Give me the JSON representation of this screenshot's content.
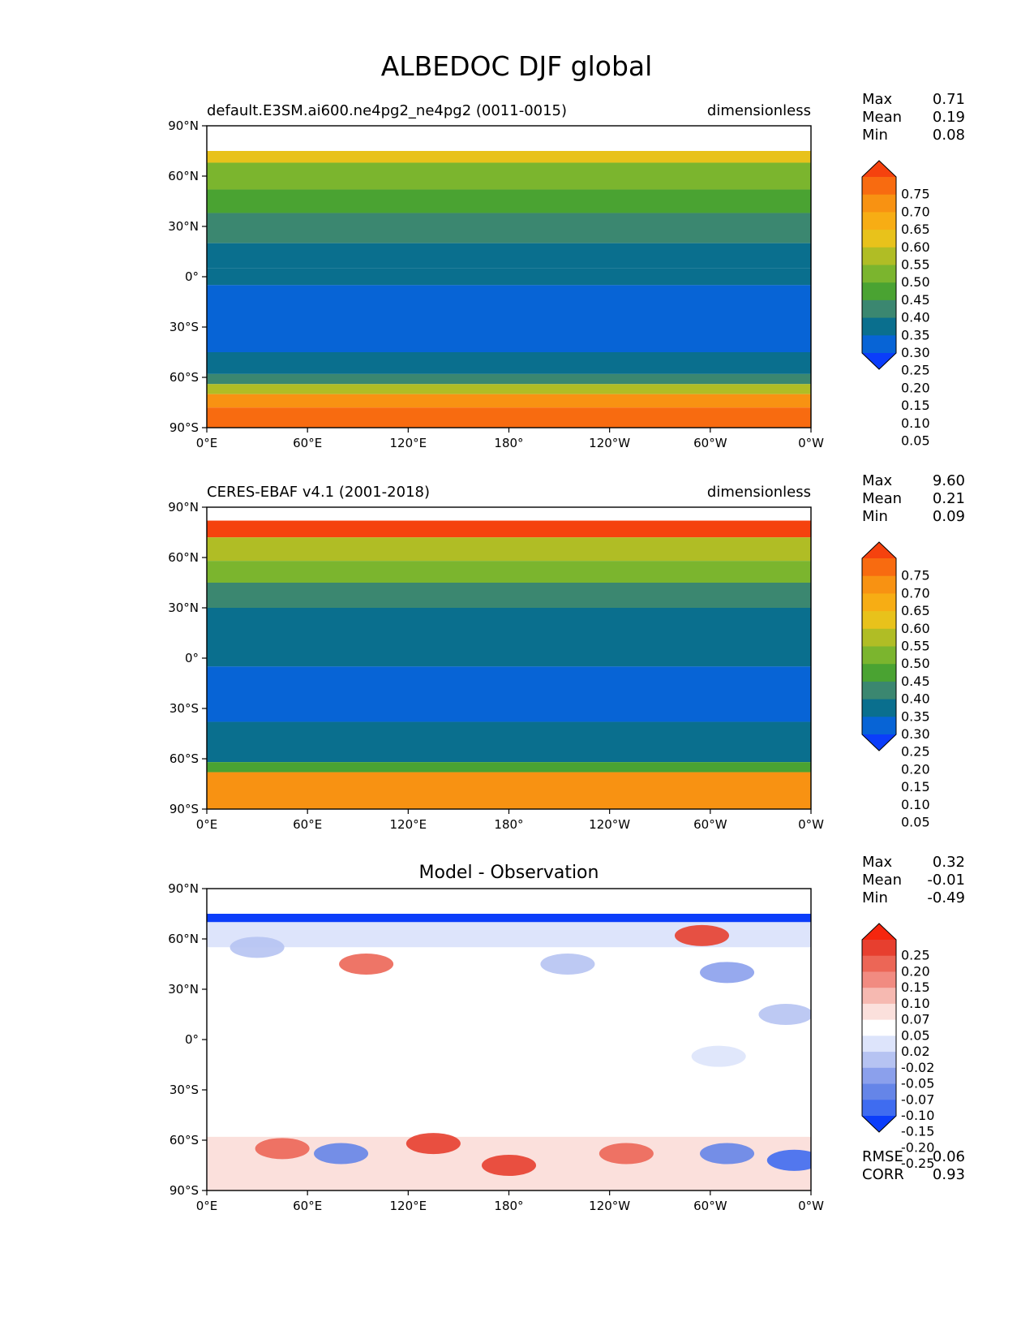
{
  "title": "ALBEDOC DJF global",
  "colors": {
    "seq": [
      "#0b3dfa",
      "#0764d6",
      "#0a6f8e",
      "#3b8770",
      "#4aa332",
      "#7bb52e",
      "#b0bd25",
      "#e8c21b",
      "#f7ad14",
      "#f89212",
      "#f86b10",
      "#f5420e"
    ],
    "diff": [
      "#0b3dfa",
      "#3f6cf0",
      "#6585e8",
      "#8ba0ec",
      "#b6c3f2",
      "#dde4fb",
      "#ffffff",
      "#fbe0dc",
      "#f6b9b1",
      "#f18b81",
      "#ec6656",
      "#e73f2f",
      "#f5260e"
    ]
  },
  "chart_data": [
    {
      "type": "heatmap",
      "panel": "test",
      "title_left": "default.E3SM.ai600.ne4pg2_ne4pg2 (0011-0015)",
      "title_right": "dimensionless",
      "stats": [
        {
          "label": "Max",
          "value": "0.71"
        },
        {
          "label": "Mean",
          "value": "0.19"
        },
        {
          "label": "Min",
          "value": "0.08"
        }
      ],
      "xlabel": "",
      "ylabel": "",
      "xlim": [
        0,
        360
      ],
      "ylim": [
        -90,
        90
      ],
      "xticks": [
        "0°E",
        "60°E",
        "120°E",
        "180°",
        "120°W",
        "60°W",
        "0°W"
      ],
      "yticks": [
        "90°N",
        "60°N",
        "30°N",
        "0°",
        "30°S",
        "60°S",
        "90°S"
      ],
      "colorbar_levels": [
        "0.75",
        "0.70",
        "0.65",
        "0.60",
        "0.55",
        "0.50",
        "0.45",
        "0.40",
        "0.35",
        "0.30",
        "0.25",
        "0.20",
        "0.15",
        "0.10",
        "0.05"
      ],
      "zonal_band_levels": [
        {
          "lat_min": 75,
          "lat_max": 90,
          "level": -1
        },
        {
          "lat_min": 68,
          "lat_max": 75,
          "level": 7
        },
        {
          "lat_min": 52,
          "lat_max": 68,
          "level": 5
        },
        {
          "lat_min": 38,
          "lat_max": 52,
          "level": 4
        },
        {
          "lat_min": 20,
          "lat_max": 38,
          "level": 3
        },
        {
          "lat_min": 5,
          "lat_max": 20,
          "level": 2
        },
        {
          "lat_min": -5,
          "lat_max": 5,
          "level": 2
        },
        {
          "lat_min": -45,
          "lat_max": -5,
          "level": 1
        },
        {
          "lat_min": -58,
          "lat_max": -45,
          "level": 2
        },
        {
          "lat_min": -64,
          "lat_max": -58,
          "level": 3
        },
        {
          "lat_min": -70,
          "lat_max": -64,
          "level": 6
        },
        {
          "lat_min": -78,
          "lat_max": -70,
          "level": 9
        },
        {
          "lat_min": -90,
          "lat_max": -78,
          "level": 10
        }
      ]
    },
    {
      "type": "heatmap",
      "panel": "reference",
      "title_left": "CERES-EBAF v4.1 (2001-2018)",
      "title_right": "dimensionless",
      "stats": [
        {
          "label": "Max",
          "value": "9.60"
        },
        {
          "label": "Mean",
          "value": "0.21"
        },
        {
          "label": "Min",
          "value": "0.09"
        }
      ],
      "xlabel": "",
      "ylabel": "",
      "xlim": [
        0,
        360
      ],
      "ylim": [
        -90,
        90
      ],
      "xticks": [
        "0°E",
        "60°E",
        "120°E",
        "180°",
        "120°W",
        "60°W",
        "0°W"
      ],
      "yticks": [
        "90°N",
        "60°N",
        "30°N",
        "0°",
        "30°S",
        "60°S",
        "90°S"
      ],
      "colorbar_levels": [
        "0.75",
        "0.70",
        "0.65",
        "0.60",
        "0.55",
        "0.50",
        "0.45",
        "0.40",
        "0.35",
        "0.30",
        "0.25",
        "0.20",
        "0.15",
        "0.10",
        "0.05"
      ],
      "zonal_band_levels": [
        {
          "lat_min": 82,
          "lat_max": 90,
          "level": -1
        },
        {
          "lat_min": 72,
          "lat_max": 82,
          "level": 11
        },
        {
          "lat_min": 58,
          "lat_max": 72,
          "level": 6
        },
        {
          "lat_min": 45,
          "lat_max": 58,
          "level": 5
        },
        {
          "lat_min": 30,
          "lat_max": 45,
          "level": 3
        },
        {
          "lat_min": 15,
          "lat_max": 30,
          "level": 2
        },
        {
          "lat_min": -5,
          "lat_max": 15,
          "level": 2
        },
        {
          "lat_min": -38,
          "lat_max": -5,
          "level": 1
        },
        {
          "lat_min": -62,
          "lat_max": -38,
          "level": 2
        },
        {
          "lat_min": -68,
          "lat_max": -62,
          "level": 4
        },
        {
          "lat_min": -90,
          "lat_max": -68,
          "level": 9
        }
      ]
    },
    {
      "type": "heatmap",
      "panel": "difference",
      "title_center": "Model - Observation",
      "stats": [
        {
          "label": "Max",
          "value": "0.32"
        },
        {
          "label": "Mean",
          "value": "-0.01"
        },
        {
          "label": "Min",
          "value": "-0.49"
        }
      ],
      "metrics": [
        {
          "label": "RMSE",
          "value": "0.06"
        },
        {
          "label": "CORR",
          "value": "0.93"
        }
      ],
      "xlabel": "",
      "ylabel": "",
      "xlim": [
        0,
        360
      ],
      "ylim": [
        -90,
        90
      ],
      "xticks": [
        "0°E",
        "60°E",
        "120°E",
        "180°",
        "120°W",
        "60°W",
        "0°W"
      ],
      "yticks": [
        "90°N",
        "60°N",
        "30°N",
        "0°",
        "30°S",
        "60°S",
        "90°S"
      ],
      "colorbar_levels": [
        "0.25",
        "0.20",
        "0.15",
        "0.10",
        "0.07",
        "0.05",
        "0.02",
        "-0.02",
        "-0.05",
        "-0.07",
        "-0.10",
        "-0.15",
        "-0.20",
        "-0.25"
      ],
      "zonal_band_levels": [
        {
          "lat_min": 75,
          "lat_max": 90,
          "level": -1
        },
        {
          "lat_min": 70,
          "lat_max": 75,
          "level": 0
        },
        {
          "lat_min": 55,
          "lat_max": 70,
          "level": 5
        },
        {
          "lat_min": -58,
          "lat_max": 55,
          "level": 6
        },
        {
          "lat_min": -75,
          "lat_max": -58,
          "level": 7
        },
        {
          "lat_min": -90,
          "lat_max": -75,
          "level": 7
        }
      ],
      "anomalies": [
        {
          "lon": 95,
          "lat": 45,
          "level": 10
        },
        {
          "lon": 30,
          "lat": 55,
          "level": 4
        },
        {
          "lon": 215,
          "lat": 45,
          "level": 4
        },
        {
          "lon": 295,
          "lat": 62,
          "level": 11
        },
        {
          "lon": 310,
          "lat": 40,
          "level": 3
        },
        {
          "lon": 345,
          "lat": 15,
          "level": 4
        },
        {
          "lon": 305,
          "lat": -10,
          "level": 5
        },
        {
          "lon": 45,
          "lat": -65,
          "level": 10
        },
        {
          "lon": 135,
          "lat": -62,
          "level": 11
        },
        {
          "lon": 180,
          "lat": -75,
          "level": 11
        },
        {
          "lon": 250,
          "lat": -68,
          "level": 10
        },
        {
          "lon": 80,
          "lat": -68,
          "level": 2
        },
        {
          "lon": 310,
          "lat": -68,
          "level": 2
        },
        {
          "lon": 350,
          "lat": -72,
          "level": 1
        }
      ]
    }
  ]
}
